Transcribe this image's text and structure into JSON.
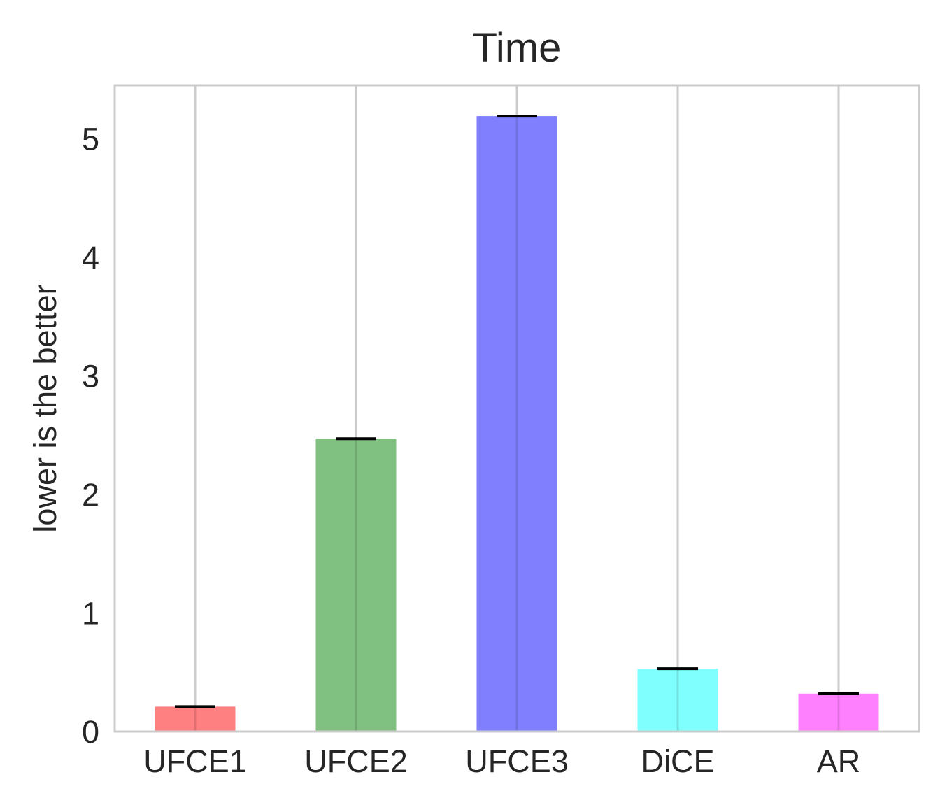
{
  "chart_data": {
    "type": "bar",
    "title": "Time",
    "xlabel": "",
    "ylabel": "lower is the better",
    "categories": [
      "UFCE1",
      "UFCE2",
      "UFCE3",
      "DiCE",
      "AR"
    ],
    "values": [
      0.21,
      2.47,
      5.19,
      0.53,
      0.32
    ],
    "error_bars": [
      0,
      0,
      0,
      0,
      0
    ],
    "colors": [
      "#ff8080",
      "#80c080",
      "#8080ff",
      "#80ffff",
      "#ff80ff"
    ],
    "ylim": [
      0,
      5.45
    ],
    "yticks": [
      0,
      1,
      2,
      3,
      4,
      5
    ],
    "ytick_labels": [
      "0",
      "1",
      "2",
      "3",
      "4",
      "5"
    ],
    "grid": "vertical",
    "error_bar_color": "#000000",
    "frame_color": "#cccccc",
    "grid_color": "#cccccc"
  }
}
